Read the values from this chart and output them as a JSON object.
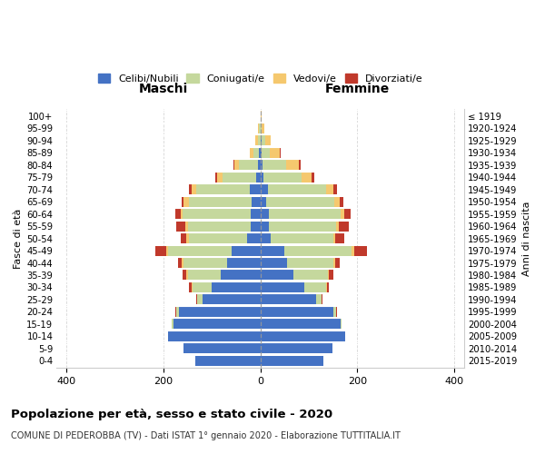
{
  "age_groups": [
    "0-4",
    "5-9",
    "10-14",
    "15-19",
    "20-24",
    "25-29",
    "30-34",
    "35-39",
    "40-44",
    "45-49",
    "50-54",
    "55-59",
    "60-64",
    "65-69",
    "70-74",
    "75-79",
    "80-84",
    "85-89",
    "90-94",
    "95-99",
    "100+"
  ],
  "birth_years": [
    "2015-2019",
    "2010-2014",
    "2005-2009",
    "2000-2004",
    "1995-1999",
    "1990-1994",
    "1985-1989",
    "1980-1984",
    "1975-1979",
    "1970-1974",
    "1965-1969",
    "1960-1964",
    "1955-1959",
    "1950-1954",
    "1945-1949",
    "1940-1944",
    "1935-1939",
    "1930-1934",
    "1925-1929",
    "1920-1924",
    "≤ 1919"
  ],
  "males": {
    "celibi": [
      135,
      158,
      190,
      180,
      168,
      120,
      100,
      82,
      68,
      60,
      28,
      20,
      20,
      18,
      22,
      8,
      4,
      2,
      0,
      0,
      0
    ],
    "coniugati": [
      0,
      0,
      0,
      2,
      5,
      10,
      40,
      68,
      90,
      130,
      120,
      130,
      140,
      130,
      110,
      70,
      40,
      12,
      5,
      2,
      0
    ],
    "vedovi": [
      0,
      0,
      0,
      0,
      0,
      0,
      2,
      2,
      4,
      5,
      5,
      5,
      5,
      10,
      10,
      12,
      10,
      8,
      5,
      2,
      0
    ],
    "divorziati": [
      0,
      0,
      0,
      0,
      2,
      2,
      5,
      8,
      8,
      22,
      12,
      18,
      10,
      5,
      5,
      2,
      2,
      0,
      0,
      0,
      0
    ]
  },
  "females": {
    "nubili": [
      130,
      148,
      175,
      165,
      150,
      115,
      90,
      68,
      55,
      50,
      22,
      18,
      18,
      12,
      15,
      6,
      4,
      2,
      2,
      0,
      0
    ],
    "coniugate": [
      0,
      0,
      0,
      3,
      6,
      12,
      45,
      72,
      95,
      138,
      128,
      138,
      148,
      140,
      120,
      80,
      50,
      18,
      8,
      3,
      0
    ],
    "vedove": [
      0,
      0,
      0,
      0,
      0,
      0,
      2,
      2,
      4,
      5,
      5,
      6,
      8,
      12,
      15,
      20,
      25,
      20,
      12,
      5,
      2
    ],
    "divorziate": [
      0,
      0,
      0,
      0,
      2,
      2,
      5,
      8,
      10,
      28,
      18,
      20,
      12,
      8,
      8,
      5,
      4,
      2,
      0,
      0,
      0
    ]
  },
  "color_celibi": "#4472C4",
  "color_coniugati": "#c5d89d",
  "color_vedovi": "#f5c86e",
  "color_divorziati": "#c0392b",
  "title_main": "Popolazione per età, sesso e stato civile - 2020",
  "title_sub": "COMUNE DI PEDEROBBA (TV) - Dati ISTAT 1° gennaio 2020 - Elaborazione TUTTITALIA.IT",
  "xlabel_left": "Maschi",
  "xlabel_right": "Femmine",
  "ylabel_left": "Fasce di età",
  "ylabel_right": "Anni di nascita",
  "xlim": 420
}
